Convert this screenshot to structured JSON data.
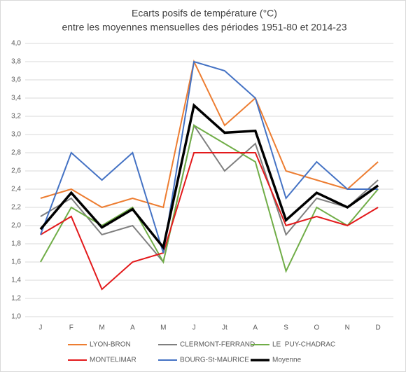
{
  "chart_data": {
    "type": "line",
    "title": "Ecarts posifs de température (°C)",
    "subtitle": "entre les moyennes mensuelles des périodes 1951-80 et 2014-23",
    "categories": [
      "J",
      "F",
      "M",
      "A",
      "M",
      "J",
      "Jt",
      "A",
      "S",
      "O",
      "N",
      "D"
    ],
    "series": [
      {
        "name": "LYON-BRON",
        "color": "#ED7D31",
        "width": 2,
        "values": [
          2.3,
          2.4,
          2.2,
          2.3,
          2.2,
          3.8,
          3.1,
          3.4,
          2.6,
          2.5,
          2.4,
          2.7
        ]
      },
      {
        "name": "CLERMONT-FERRAND",
        "color": "#7F7F7F",
        "width": 2,
        "values": [
          2.1,
          2.3,
          1.9,
          2.0,
          1.6,
          3.1,
          2.6,
          2.9,
          1.9,
          2.3,
          2.2,
          2.5
        ]
      },
      {
        "name": "LE  PUY-CHADRAC",
        "color": "#70AD47",
        "width": 2,
        "values": [
          1.6,
          2.2,
          2.0,
          2.2,
          1.6,
          3.1,
          2.9,
          2.7,
          1.5,
          2.2,
          2.0,
          2.4
        ]
      },
      {
        "name": "MONTELIMAR",
        "color": "#E31A1C",
        "width": 2,
        "values": [
          1.9,
          2.1,
          1.3,
          1.6,
          1.7,
          2.8,
          2.8,
          2.8,
          2.0,
          2.1,
          2.0,
          2.2
        ]
      },
      {
        "name": "BOURG-St-MAURICE",
        "color": "#4472C4",
        "width": 2,
        "values": [
          1.9,
          2.8,
          2.5,
          2.8,
          1.7,
          3.8,
          3.7,
          3.4,
          2.3,
          2.7,
          2.4,
          2.4
        ]
      },
      {
        "name": "Moyenne",
        "color": "#000000",
        "width": 3.5,
        "values": [
          1.96,
          2.36,
          1.98,
          2.18,
          1.76,
          3.32,
          3.02,
          3.04,
          2.06,
          2.36,
          2.2,
          2.44
        ]
      }
    ],
    "ylim": [
      1.0,
      4.0
    ],
    "yticks": [
      {
        "value": 1.0,
        "label": "1,0"
      },
      {
        "value": 1.2,
        "label": "1,2"
      },
      {
        "value": 1.4,
        "label": "1,4"
      },
      {
        "value": 1.6,
        "label": "1,6"
      },
      {
        "value": 1.8,
        "label": "1,8"
      },
      {
        "value": 2.0,
        "label": "2,0"
      },
      {
        "value": 2.2,
        "label": "2,2"
      },
      {
        "value": 2.4,
        "label": "2,4"
      },
      {
        "value": 2.6,
        "label": "2,6"
      },
      {
        "value": 2.8,
        "label": "2,8"
      },
      {
        "value": 3.0,
        "label": "3,0"
      },
      {
        "value": 3.2,
        "label": "3,2"
      },
      {
        "value": 3.4,
        "label": "3,4"
      },
      {
        "value": 3.6,
        "label": "3,6"
      },
      {
        "value": 3.8,
        "label": "3,8"
      },
      {
        "value": 4.0,
        "label": "4,0"
      }
    ],
    "grid": true
  }
}
